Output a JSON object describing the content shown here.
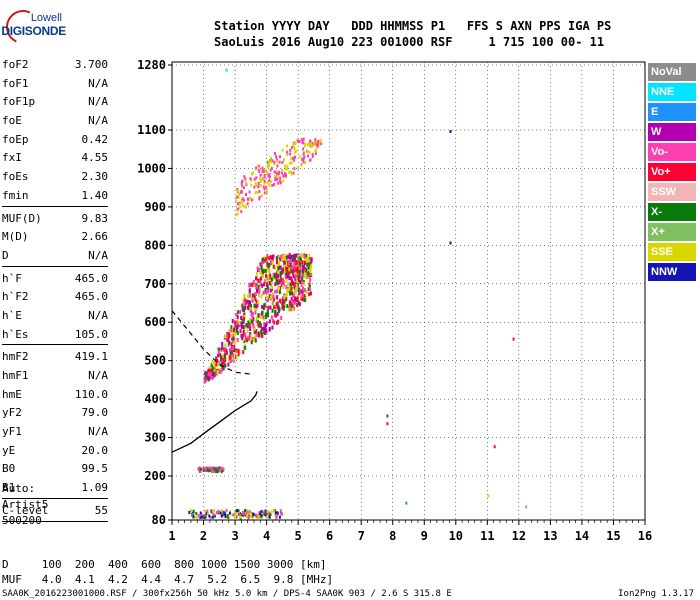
{
  "logo": {
    "line1": "Lowell",
    "line2": "DIGISONDE"
  },
  "header": {
    "line1": "Station YYYY DAY   DDD HHMMSS P1   FFS S AXN PPS IGA PS",
    "line2": "SaoLuis 2016 Aug10 223 001000 RSF     1 715 100 00- 11"
  },
  "params_group1": [
    {
      "k": "foF2",
      "v": "3.700"
    },
    {
      "k": "foF1",
      "v": "N/A"
    },
    {
      "k": "foF1p",
      "v": "N/A"
    },
    {
      "k": "foE",
      "v": "N/A"
    },
    {
      "k": "foEp",
      "v": "0.42"
    },
    {
      "k": "fxI",
      "v": "4.55"
    },
    {
      "k": "foEs",
      "v": "2.30"
    },
    {
      "k": "fmin",
      "v": "1.40"
    }
  ],
  "params_group2": [
    {
      "k": "MUF(D)",
      "v": "9.83"
    },
    {
      "k": "M(D)",
      "v": "2.66"
    },
    {
      "k": "D",
      "v": "N/A"
    }
  ],
  "params_group3": [
    {
      "k": "h`F",
      "v": "465.0"
    },
    {
      "k": "h`F2",
      "v": "465.0"
    },
    {
      "k": "h`E",
      "v": "N/A"
    },
    {
      "k": "h`Es",
      "v": "105.0"
    }
  ],
  "params_group4": [
    {
      "k": "hmF2",
      "v": "419.1"
    },
    {
      "k": "hmF1",
      "v": "N/A"
    },
    {
      "k": "hmE",
      "v": "110.0"
    },
    {
      "k": "yF2",
      "v": "79.0"
    },
    {
      "k": "yF1",
      "v": "N/A"
    },
    {
      "k": "yE",
      "v": "20.0"
    },
    {
      "k": "B0",
      "v": "99.5"
    },
    {
      "k": "B1",
      "v": "1.09"
    }
  ],
  "params_group5": [
    {
      "k": "C-level",
      "v": "55"
    }
  ],
  "auto": {
    "line1": "Auto:",
    "line2": "Artist5",
    "line3": "500200"
  },
  "legend": [
    {
      "label": "NoVal",
      "color": "#8c8c8c"
    },
    {
      "label": "NNE",
      "color": "#00e5ff"
    },
    {
      "label": "E",
      "color": "#1e90ff"
    },
    {
      "label": "W",
      "color": "#b000b0"
    },
    {
      "label": "Vo-",
      "color": "#ff3fb0"
    },
    {
      "label": "Vo+",
      "color": "#ff0033"
    },
    {
      "label": "SSW",
      "color": "#f2b4b4"
    },
    {
      "label": "X-",
      "color": "#0a7a0a"
    },
    {
      "label": "X+",
      "color": "#80c060"
    },
    {
      "label": "SSE",
      "color": "#d8d800"
    },
    {
      "label": "NNW",
      "color": "#1414b4"
    }
  ],
  "distance_table": {
    "line1": "D     100  200  400  600  800 1000 1500 3000 [km]",
    "line2": "MUF   4.0  4.1  4.2  4.4  4.7  5.2  6.5  9.8 [MHz]"
  },
  "footer": {
    "left": "SAA0K_2016223001000.RSF / 300fx256h 50 kHz 5.0 km / DPS-4 SAA0K 903 / 2.6 S 315.8 E",
    "right": "Ion2Png 1.3.17"
  },
  "chart_data": {
    "type": "scatter",
    "title": "",
    "xlabel": "",
    "ylabel": "",
    "x_ticks": [
      1,
      2,
      3,
      4,
      5,
      6,
      7,
      8,
      9,
      10,
      11,
      12,
      13,
      14,
      15,
      16
    ],
    "y_ticks": [
      80,
      200,
      300,
      400,
      500,
      600,
      700,
      800,
      900,
      1000,
      1100,
      1280
    ],
    "xlim": [
      1,
      16
    ],
    "ylim": [
      80,
      1280
    ],
    "y_scale": "nonlinear (virtual height)",
    "grid": true,
    "series": [
      {
        "name": "O-trace (dense echoes)",
        "x_range": [
          2.0,
          5.4
        ],
        "y_range": [
          450,
          780
        ],
        "colors": [
          "#d8d800",
          "#ff3fb0",
          "#b000b0",
          "#0a7a0a",
          "#ff0033"
        ]
      },
      {
        "name": "upper echoes",
        "x_range": [
          3.0,
          5.7
        ],
        "y_range": [
          860,
          1080
        ],
        "colors": [
          "#d8d800",
          "#ff3fb0"
        ]
      },
      {
        "name": "Es 200 km",
        "x_range": [
          1.8,
          2.6
        ],
        "y_range": [
          215,
          225
        ],
        "colors": [
          "#ff3fb0",
          "#0a7a0a"
        ]
      },
      {
        "name": "E 100 km",
        "x_range": [
          1.5,
          4.5
        ],
        "y_range": [
          90,
          110
        ],
        "colors": [
          "#ff3fb0",
          "#0a7a0a",
          "#1414b4",
          "#d8d800"
        ]
      }
    ],
    "scattered_points": [
      {
        "x": 2.7,
        "y": 1270,
        "color": "#00e5ff"
      },
      {
        "x": 9.8,
        "y": 1100,
        "color": "#1414b4"
      },
      {
        "x": 9.8,
        "y": 810,
        "color": "#1414b4"
      },
      {
        "x": 11.8,
        "y": 560,
        "color": "#ff0033"
      },
      {
        "x": 7.8,
        "y": 360,
        "color": "#0a7a0a"
      },
      {
        "x": 7.8,
        "y": 340,
        "color": "#ff0033"
      },
      {
        "x": 11.2,
        "y": 280,
        "color": "#ff0033"
      },
      {
        "x": 11.0,
        "y": 150,
        "color": "#d8d800"
      },
      {
        "x": 8.4,
        "y": 130,
        "color": "#1e90ff"
      },
      {
        "x": 12.2,
        "y": 120,
        "color": "#80c060"
      }
    ],
    "profile_curve": [
      [
        1.0,
        262
      ],
      [
        1.6,
        285
      ],
      [
        2.0,
        310
      ],
      [
        2.5,
        340
      ],
      [
        3.0,
        370
      ],
      [
        3.5,
        395
      ],
      [
        3.65,
        410
      ],
      [
        3.7,
        420
      ]
    ],
    "dashed_curve": [
      [
        1.0,
        630
      ],
      [
        1.5,
        580
      ],
      [
        2.0,
        530
      ],
      [
        2.5,
        490
      ],
      [
        3.0,
        470
      ],
      [
        3.5,
        465
      ]
    ]
  }
}
